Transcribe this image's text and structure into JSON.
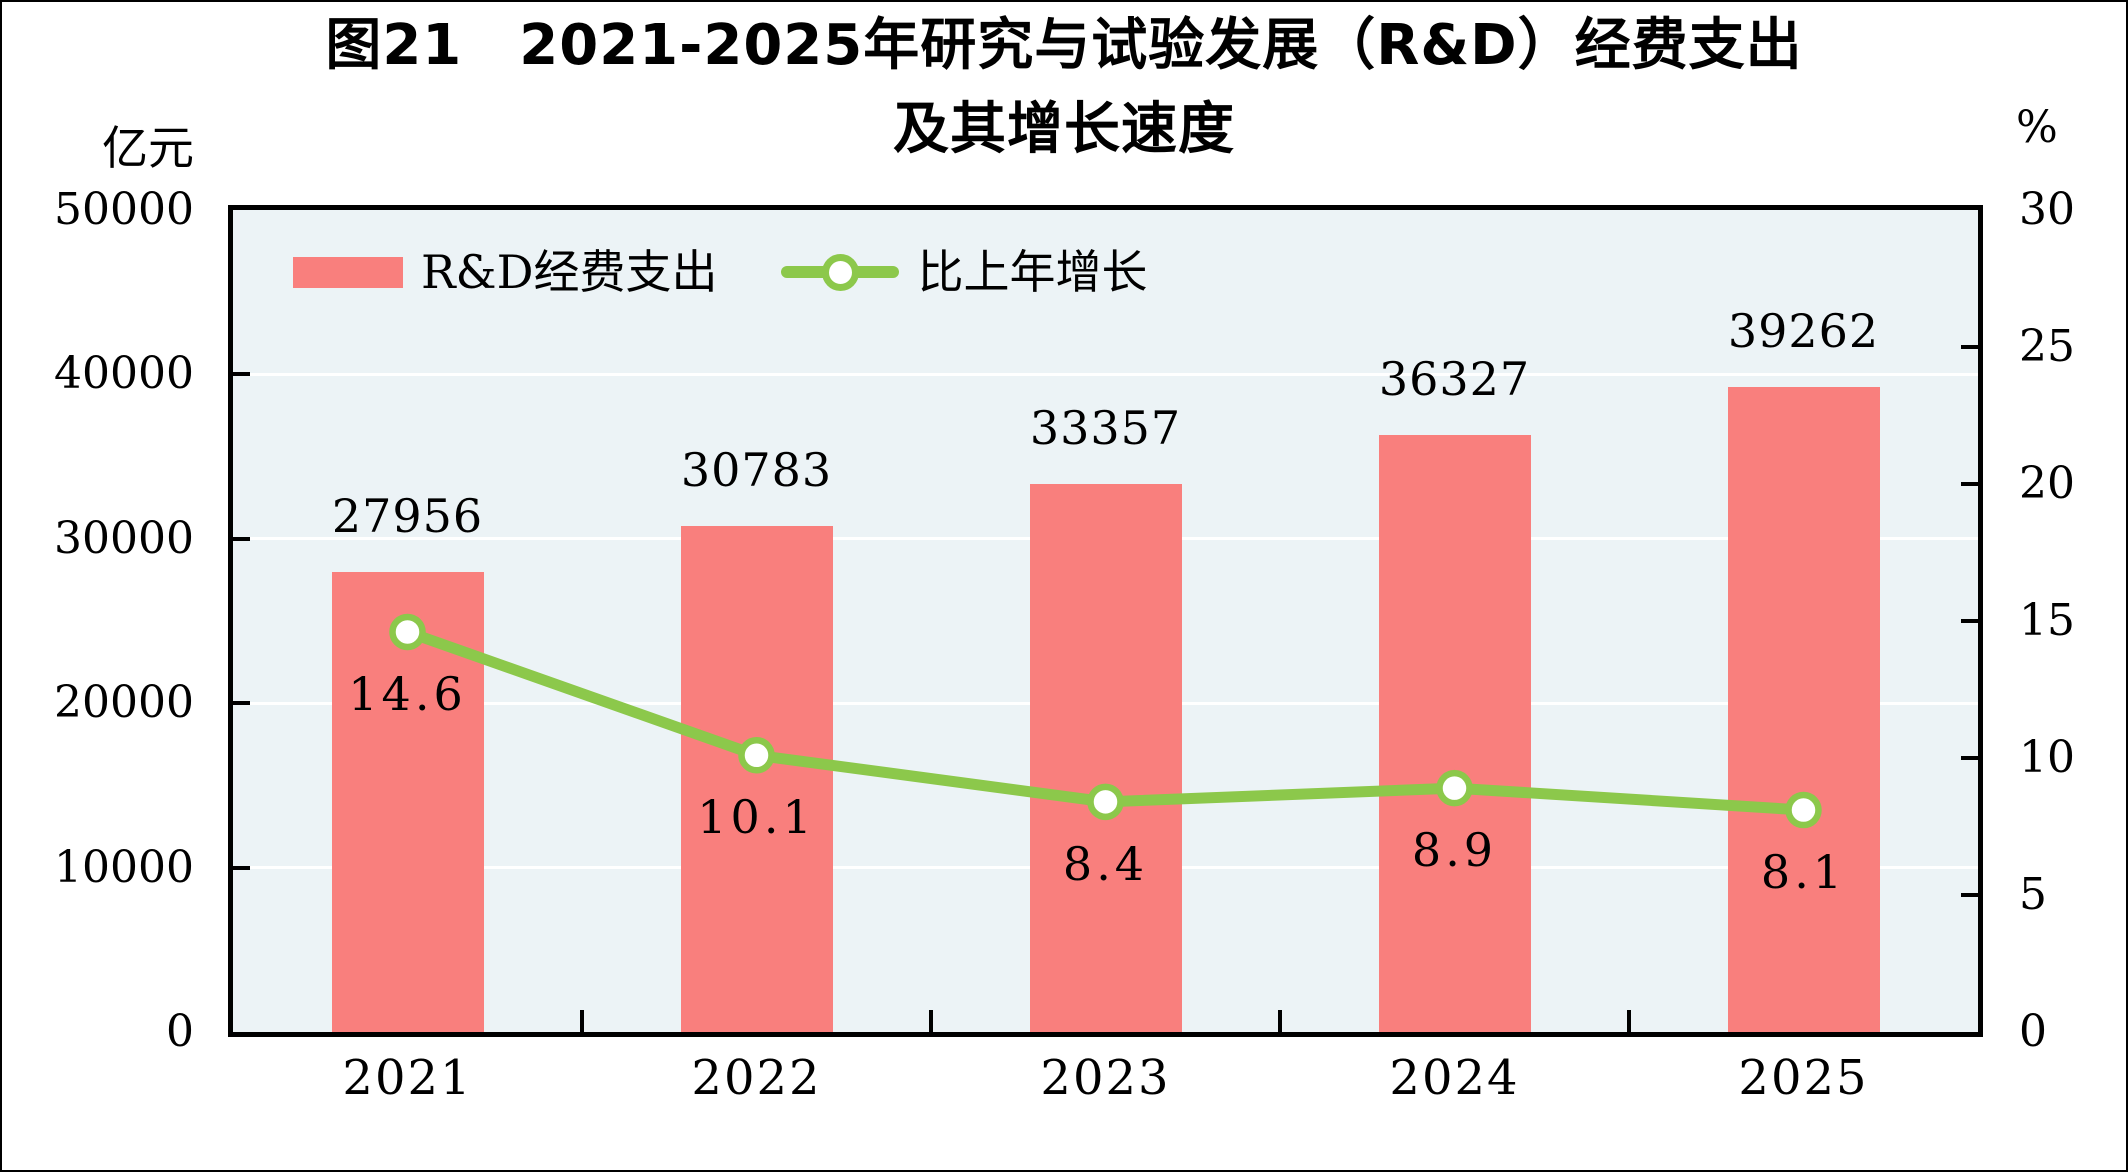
{
  "title": {
    "line1": "图21　2021-2025年研究与试验发展（R&D）经费支出",
    "line2": "及其增长速度"
  },
  "chart_data": {
    "type": "combo",
    "title": "图21 2021-2025年研究与试验发展（R&D）经费支出及其增长速度",
    "categories": [
      "2021",
      "2022",
      "2023",
      "2024",
      "2025"
    ],
    "series": [
      {
        "name": "R&D经费支出",
        "type": "bar",
        "axis": "left",
        "values": [
          27956,
          30783,
          33357,
          36327,
          39262
        ],
        "labels": [
          "27956",
          "30783",
          "33357",
          "36327",
          "39262"
        ],
        "color": "#f97f7d"
      },
      {
        "name": "比上年增长",
        "type": "line",
        "axis": "right",
        "values": [
          14.6,
          10.1,
          8.4,
          8.9,
          8.1
        ],
        "labels": [
          "14.6",
          "10.1",
          "8.4",
          "8.9",
          "8.1"
        ],
        "color": "#8cc84b",
        "marker_fill": "#ffffff"
      }
    ],
    "left_axis": {
      "unit": "亿元",
      "min": 0,
      "max": 50000,
      "ticks": [
        0,
        10000,
        20000,
        30000,
        40000,
        50000
      ],
      "tick_labels": [
        "0",
        "10000",
        "20000",
        "30000",
        "40000",
        "50000"
      ]
    },
    "right_axis": {
      "unit": "%",
      "min": 0,
      "max": 30,
      "ticks": [
        0,
        5,
        10,
        15,
        20,
        25,
        30
      ],
      "tick_labels": [
        "0",
        "5",
        "10",
        "15",
        "20",
        "25",
        "30"
      ]
    },
    "gridlines": {
      "color": "#ffffff",
      "at_left_values": [
        10000,
        20000,
        30000,
        40000
      ]
    },
    "plot_background": "#ecf3f6",
    "axis_color": "#000000",
    "text_color": "#000000",
    "legend_position": "top-left-inside",
    "grid": "horizontal-only"
  }
}
